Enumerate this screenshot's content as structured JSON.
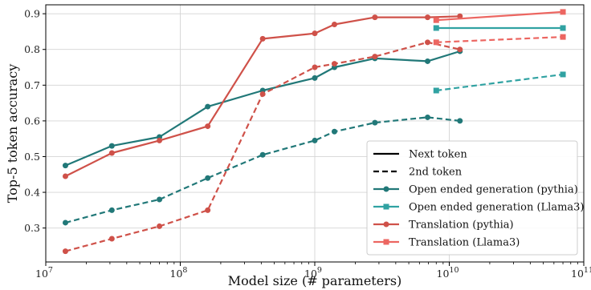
{
  "chart_data": {
    "type": "line",
    "xlabel": "Model size (# parameters)",
    "ylabel": "Top-5 token accuracy",
    "xscale": "log",
    "xlim": [
      10000000,
      100000000000
    ],
    "ylim": [
      0.205,
      0.925
    ],
    "grid": true,
    "legend_position": "bottom-right",
    "x_ticks": [
      {
        "value": 10000000,
        "base": "10",
        "exp": "7"
      },
      {
        "value": 100000000,
        "base": "10",
        "exp": "8"
      },
      {
        "value": 1000000000,
        "base": "10",
        "exp": "9"
      },
      {
        "value": 10000000000,
        "base": "10",
        "exp": "10"
      },
      {
        "value": 100000000000,
        "base": "10",
        "exp": "11"
      }
    ],
    "y_ticks": [
      {
        "value": 0.3,
        "label": "0.3"
      },
      {
        "value": 0.4,
        "label": "0.4"
      },
      {
        "value": 0.5,
        "label": "0.5"
      },
      {
        "value": 0.6,
        "label": "0.6"
      },
      {
        "value": 0.7,
        "label": "0.7"
      },
      {
        "value": 0.8,
        "label": "0.8"
      },
      {
        "value": 0.9,
        "label": "0.9"
      }
    ],
    "legend": [
      {
        "label": "Next token",
        "kind": "line",
        "color": "#000000",
        "dash": "solid"
      },
      {
        "label": "2nd token",
        "kind": "line",
        "color": "#000000",
        "dash": "dashed"
      },
      {
        "label": "Open ended generation (pythia)",
        "kind": "marker",
        "marker": "circle",
        "color": "#217878"
      },
      {
        "label": "Open ended generation (Llama3)",
        "kind": "marker",
        "marker": "square",
        "color": "#30A2A2"
      },
      {
        "label": "Translation (pythia)",
        "kind": "marker",
        "marker": "circle",
        "color": "#CF5149"
      },
      {
        "label": "Translation (Llama3)",
        "kind": "marker",
        "marker": "square",
        "color": "#EC6661"
      }
    ],
    "series": [
      {
        "name": "Open ended generation (pythia)",
        "token": "Next token",
        "color": "#217878",
        "marker": "circle",
        "dash": "solid",
        "x": [
          14000000,
          31000000,
          70000000,
          160000000,
          410000000,
          1000000000,
          1400000000,
          2800000000,
          6900000000,
          12000000000
        ],
        "y": [
          0.475,
          0.53,
          0.555,
          0.64,
          0.685,
          0.72,
          0.75,
          0.775,
          0.767,
          0.795
        ]
      },
      {
        "name": "Open ended generation (pythia)",
        "token": "2nd token",
        "color": "#217878",
        "marker": "circle",
        "dash": "dashed",
        "x": [
          14000000,
          31000000,
          70000000,
          160000000,
          410000000,
          1000000000,
          1400000000,
          2800000000,
          6900000000,
          12000000000
        ],
        "y": [
          0.315,
          0.35,
          0.38,
          0.44,
          0.505,
          0.545,
          0.57,
          0.595,
          0.61,
          0.6
        ]
      },
      {
        "name": "Translation (pythia)",
        "token": "Next token",
        "color": "#CF5149",
        "marker": "circle",
        "dash": "solid",
        "x": [
          14000000,
          31000000,
          70000000,
          160000000,
          410000000,
          1000000000,
          1400000000,
          2800000000,
          6900000000,
          12000000000
        ],
        "y": [
          0.445,
          0.51,
          0.545,
          0.585,
          0.83,
          0.845,
          0.87,
          0.89,
          0.89,
          0.893
        ]
      },
      {
        "name": "Translation (pythia)",
        "token": "2nd token",
        "color": "#CF5149",
        "marker": "circle",
        "dash": "dashed",
        "x": [
          14000000,
          31000000,
          70000000,
          160000000,
          410000000,
          1000000000,
          1400000000,
          2800000000,
          6900000000,
          12000000000
        ],
        "y": [
          0.235,
          0.27,
          0.305,
          0.35,
          0.675,
          0.75,
          0.76,
          0.78,
          0.82,
          0.8
        ]
      },
      {
        "name": "Open ended generation (Llama3)",
        "token": "Next token",
        "color": "#30A2A2",
        "marker": "square",
        "dash": "solid",
        "x": [
          8000000000,
          70000000000
        ],
        "y": [
          0.86,
          0.86
        ]
      },
      {
        "name": "Open ended generation (Llama3)",
        "token": "2nd token",
        "color": "#30A2A2",
        "marker": "square",
        "dash": "dashed",
        "x": [
          8000000000,
          70000000000
        ],
        "y": [
          0.685,
          0.73
        ]
      },
      {
        "name": "Translation (Llama3)",
        "token": "Next token",
        "color": "#EC6661",
        "marker": "square",
        "dash": "solid",
        "x": [
          8000000000,
          70000000000
        ],
        "y": [
          0.882,
          0.905
        ]
      },
      {
        "name": "Translation (Llama3)",
        "token": "2nd token",
        "color": "#EC6661",
        "marker": "square",
        "dash": "dashed",
        "x": [
          8000000000,
          70000000000
        ],
        "y": [
          0.82,
          0.835
        ]
      }
    ]
  }
}
